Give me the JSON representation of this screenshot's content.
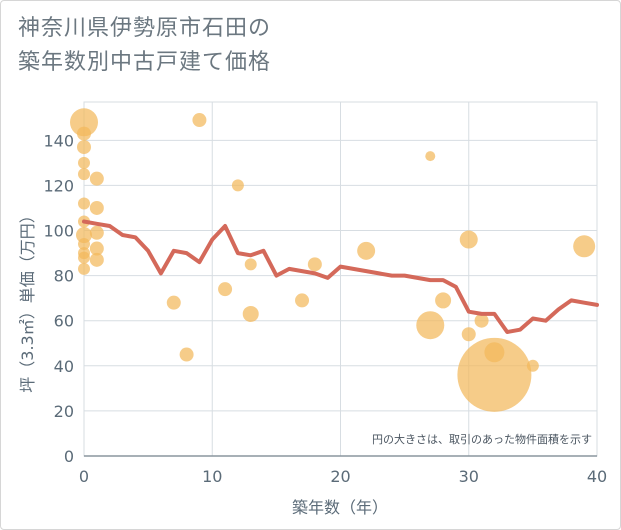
{
  "title_line1": "神奈川県伊勢原市石田の",
  "title_line2": "築年数別中古戸建て価格",
  "chart_data": {
    "type": "scatter",
    "title": "神奈川県伊勢原市石田の築年数別中古戸建て価格",
    "xlabel": "築年数（年）",
    "ylabel": "坪（3.3㎡）単価（万円）",
    "xlim": [
      0,
      40
    ],
    "ylim": [
      0,
      157
    ],
    "xticks": [
      0,
      10,
      20,
      30,
      40
    ],
    "yticks": [
      0,
      20,
      40,
      60,
      80,
      100,
      120,
      140
    ],
    "annotation": "円の大きさは、取引のあった物件面積を示す",
    "colors": {
      "bubble": "#f2b85c",
      "line": "#d4695a",
      "grid": "#d7dde2"
    },
    "bubbles": [
      {
        "x": 0,
        "y": 148,
        "size": 14
      },
      {
        "x": 0,
        "y": 143,
        "size": 7
      },
      {
        "x": 0,
        "y": 137,
        "size": 7
      },
      {
        "x": 0,
        "y": 130,
        "size": 6
      },
      {
        "x": 0,
        "y": 125,
        "size": 6
      },
      {
        "x": 0,
        "y": 112,
        "size": 6
      },
      {
        "x": 0,
        "y": 104,
        "size": 6
      },
      {
        "x": 0,
        "y": 98,
        "size": 8
      },
      {
        "x": 0,
        "y": 94,
        "size": 6
      },
      {
        "x": 0,
        "y": 90,
        "size": 6
      },
      {
        "x": 0,
        "y": 88,
        "size": 6
      },
      {
        "x": 0,
        "y": 83,
        "size": 6
      },
      {
        "x": 1,
        "y": 123,
        "size": 7
      },
      {
        "x": 1,
        "y": 110,
        "size": 7
      },
      {
        "x": 1,
        "y": 99,
        "size": 7
      },
      {
        "x": 1,
        "y": 92,
        "size": 7
      },
      {
        "x": 1,
        "y": 87,
        "size": 7
      },
      {
        "x": 7,
        "y": 68,
        "size": 7
      },
      {
        "x": 8,
        "y": 45,
        "size": 7
      },
      {
        "x": 9,
        "y": 149,
        "size": 7
      },
      {
        "x": 11,
        "y": 74,
        "size": 7
      },
      {
        "x": 12,
        "y": 120,
        "size": 6
      },
      {
        "x": 13,
        "y": 85,
        "size": 6
      },
      {
        "x": 13,
        "y": 63,
        "size": 8
      },
      {
        "x": 17,
        "y": 69,
        "size": 7
      },
      {
        "x": 18,
        "y": 85,
        "size": 7
      },
      {
        "x": 22,
        "y": 91,
        "size": 9
      },
      {
        "x": 27,
        "y": 133,
        "size": 5
      },
      {
        "x": 27,
        "y": 58,
        "size": 14
      },
      {
        "x": 28,
        "y": 69,
        "size": 8
      },
      {
        "x": 30,
        "y": 96,
        "size": 9
      },
      {
        "x": 30,
        "y": 54,
        "size": 7
      },
      {
        "x": 31,
        "y": 60,
        "size": 7
      },
      {
        "x": 32,
        "y": 36,
        "size": 37
      },
      {
        "x": 32,
        "y": 46,
        "size": 10
      },
      {
        "x": 35,
        "y": 40,
        "size": 6
      },
      {
        "x": 39,
        "y": 93,
        "size": 11
      }
    ],
    "trend": {
      "x": [
        0,
        1,
        2,
        3,
        4,
        5,
        6,
        7,
        8,
        9,
        10,
        11,
        12,
        13,
        14,
        15,
        16,
        17,
        18,
        19,
        20,
        21,
        22,
        23,
        24,
        25,
        26,
        27,
        28,
        29,
        30,
        31,
        32,
        33,
        34,
        35,
        36,
        37,
        38,
        39,
        40
      ],
      "y": [
        104,
        103,
        102,
        98,
        97,
        91,
        81,
        91,
        90,
        86,
        96,
        102,
        90,
        89,
        91,
        80,
        83,
        82,
        81,
        79,
        84,
        83,
        82,
        81,
        80,
        80,
        79,
        78,
        78,
        75,
        64,
        63,
        63,
        55,
        56,
        61,
        60,
        65,
        69,
        68,
        67
      ]
    }
  }
}
